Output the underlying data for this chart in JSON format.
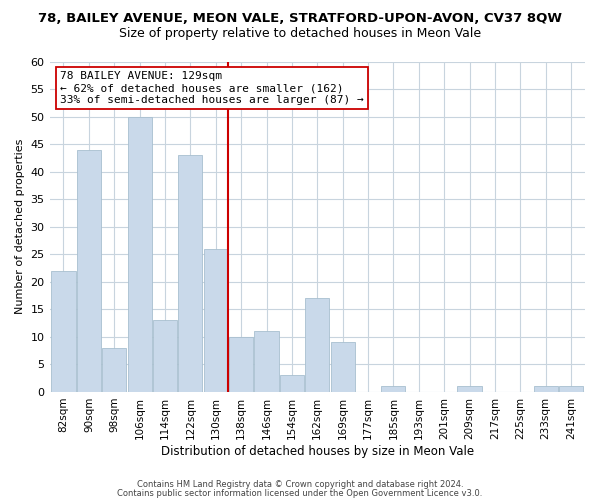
{
  "title": "78, BAILEY AVENUE, MEON VALE, STRATFORD-UPON-AVON, CV37 8QW",
  "subtitle": "Size of property relative to detached houses in Meon Vale",
  "xlabel": "Distribution of detached houses by size in Meon Vale",
  "ylabel": "Number of detached properties",
  "bar_labels": [
    "82sqm",
    "90sqm",
    "98sqm",
    "106sqm",
    "114sqm",
    "122sqm",
    "130sqm",
    "138sqm",
    "146sqm",
    "154sqm",
    "162sqm",
    "169sqm",
    "177sqm",
    "185sqm",
    "193sqm",
    "201sqm",
    "209sqm",
    "217sqm",
    "225sqm",
    "233sqm",
    "241sqm"
  ],
  "bar_values": [
    22,
    44,
    8,
    50,
    13,
    43,
    26,
    10,
    11,
    3,
    17,
    9,
    0,
    1,
    0,
    0,
    1,
    0,
    0,
    1,
    1
  ],
  "bar_color": "#c9d9ea",
  "bar_edge_color": "#a8bfcf",
  "highlight_line_color": "#cc0000",
  "annotation_line1": "78 BAILEY AVENUE: 129sqm",
  "annotation_line2": "← 62% of detached houses are smaller (162)",
  "annotation_line3": "33% of semi-detached houses are larger (87) →",
  "annotation_box_edge": "#cc0000",
  "ylim": [
    0,
    60
  ],
  "yticks": [
    0,
    5,
    10,
    15,
    20,
    25,
    30,
    35,
    40,
    45,
    50,
    55,
    60
  ],
  "footer_line1": "Contains HM Land Registry data © Crown copyright and database right 2024.",
  "footer_line2": "Contains public sector information licensed under the Open Government Licence v3.0.",
  "background_color": "#ffffff",
  "grid_color": "#c8d4de",
  "title_fontsize": 9.5,
  "subtitle_fontsize": 9,
  "annotation_fontsize": 8,
  "bar_edge_linewidth": 0.6
}
